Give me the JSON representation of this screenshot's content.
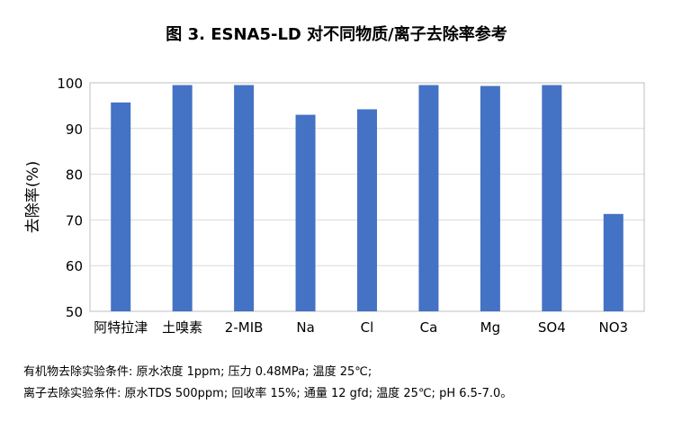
{
  "chart_data": {
    "type": "bar",
    "title": "图 3. ESNA5-LD 对不同物质/离子去除率参考",
    "xlabel": "",
    "ylabel": "去除率(%)",
    "ylim": [
      50,
      100
    ],
    "yticks": [
      50,
      60,
      70,
      80,
      90,
      100
    ],
    "grid": true,
    "categories": [
      "阿特拉津",
      "土嗅素",
      "2-MIB",
      "Na",
      "Cl",
      "Ca",
      "Mg",
      "SO4",
      "NO3"
    ],
    "values": [
      95.7,
      99.5,
      99.5,
      93.0,
      94.2,
      99.5,
      99.3,
      99.5,
      71.3
    ],
    "colors": {
      "bar": "#4472C4",
      "grid": "#D9D9D9",
      "frame": "#BFBFBF"
    }
  },
  "notes": [
    "有机物去除实验条件:  原水浓度 1ppm; 压力 0.48MPa; 温度 25℃;",
    "离子去除实验条件: 原水TDS 500ppm; 回收率 15%; 通量 12 gfd; 温度 25℃; pH 6.5-7.0。"
  ]
}
